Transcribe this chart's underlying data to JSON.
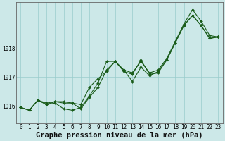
{
  "title": "Graphe pression niveau de la mer (hPa)",
  "bg_color": "#cce8e8",
  "grid_color": "#99cccc",
  "line_color": "#1a5c1a",
  "xlim": [
    -0.5,
    23.5
  ],
  "ylim": [
    1015.4,
    1019.6
  ],
  "yticks": [
    1016,
    1017,
    1018
  ],
  "xticks": [
    0,
    1,
    2,
    3,
    4,
    5,
    6,
    7,
    8,
    9,
    10,
    11,
    12,
    13,
    14,
    15,
    16,
    17,
    18,
    19,
    20,
    21,
    22,
    23
  ],
  "series": {
    "line1": {
      "x": [
        0,
        1,
        2,
        3,
        4,
        5,
        6,
        7,
        8,
        9,
        10,
        11,
        12,
        13,
        14,
        15,
        16,
        17,
        18,
        19,
        20,
        21,
        22,
        23
      ],
      "y": [
        1015.95,
        1015.85,
        1016.2,
        1016.05,
        1016.1,
        1015.9,
        1015.85,
        1015.95,
        1016.35,
        1016.8,
        1017.55,
        1017.55,
        1017.2,
        1017.1,
        1017.6,
        1017.1,
        1017.15,
        1017.6,
        1018.2,
        1018.8,
        1019.15,
        1018.8,
        1018.35,
        1018.4
      ]
    },
    "line2": {
      "x": [
        0,
        1,
        2,
        3,
        4,
        5,
        6,
        7,
        8,
        9,
        10,
        11,
        12,
        13,
        14,
        15,
        16,
        17,
        18,
        19,
        20,
        21,
        22,
        23
      ],
      "y": [
        1015.95,
        1015.85,
        1016.2,
        1016.05,
        1016.15,
        1016.1,
        1016.1,
        1015.9,
        1016.3,
        1016.65,
        1017.25,
        1017.55,
        1017.25,
        1016.85,
        1017.35,
        1017.05,
        1017.2,
        1017.6,
        1018.2,
        1018.8,
        1019.15,
        1018.8,
        1018.35,
        1018.4
      ]
    },
    "line3": {
      "x": [
        0,
        1,
        2,
        3,
        4,
        5,
        6,
        7,
        8,
        9,
        10,
        11,
        12,
        13,
        14,
        15,
        16,
        17,
        18,
        19,
        20,
        21,
        22,
        23
      ],
      "y": [
        1015.95,
        1015.85,
        1016.2,
        1016.1,
        1016.15,
        1016.15,
        1016.1,
        1016.05,
        1016.65,
        1016.95,
        1017.2,
        1017.55,
        1017.25,
        1017.15,
        1017.55,
        1017.15,
        1017.25,
        1017.65,
        1018.25,
        1018.85,
        1019.35,
        1018.95,
        1018.45,
        1018.4
      ]
    }
  },
  "marker": "D",
  "marker_size": 2.0,
  "line_width": 0.8,
  "title_fontsize": 7.5,
  "tick_fontsize": 5.5,
  "figsize": [
    3.2,
    2.0
  ],
  "dpi": 100
}
